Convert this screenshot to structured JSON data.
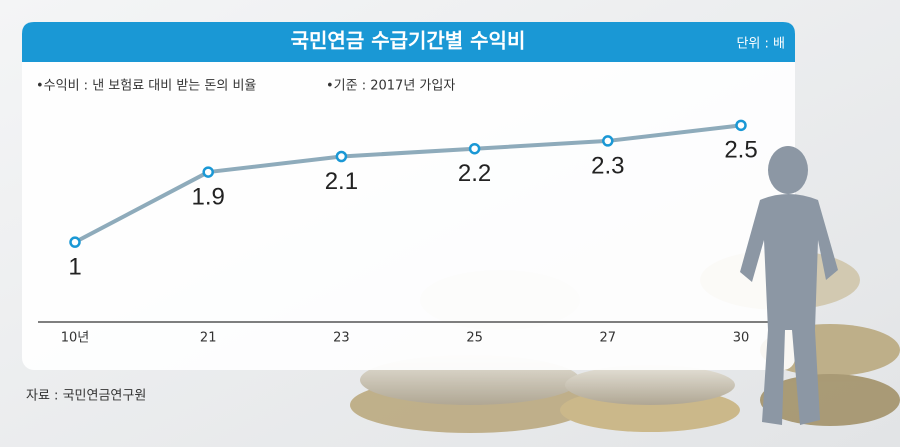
{
  "chart_data": {
    "type": "line",
    "title": "국민연금 수급기간별 수익비",
    "unit_label": "단위 : 배",
    "notes": [
      "•수익비 : 낸 보험료 대비 받는 돈의 비율",
      "•기준 : 2017년 가입자"
    ],
    "source": "자료 : 국민연금연구원",
    "categories": [
      "10년",
      "21",
      "23",
      "25",
      "27",
      "30"
    ],
    "values": [
      1,
      1.9,
      2.1,
      2.2,
      2.3,
      2.5
    ],
    "color": "#8eabbb",
    "marker_color": "#1a98d5",
    "ylim": [
      0,
      2.8
    ]
  }
}
